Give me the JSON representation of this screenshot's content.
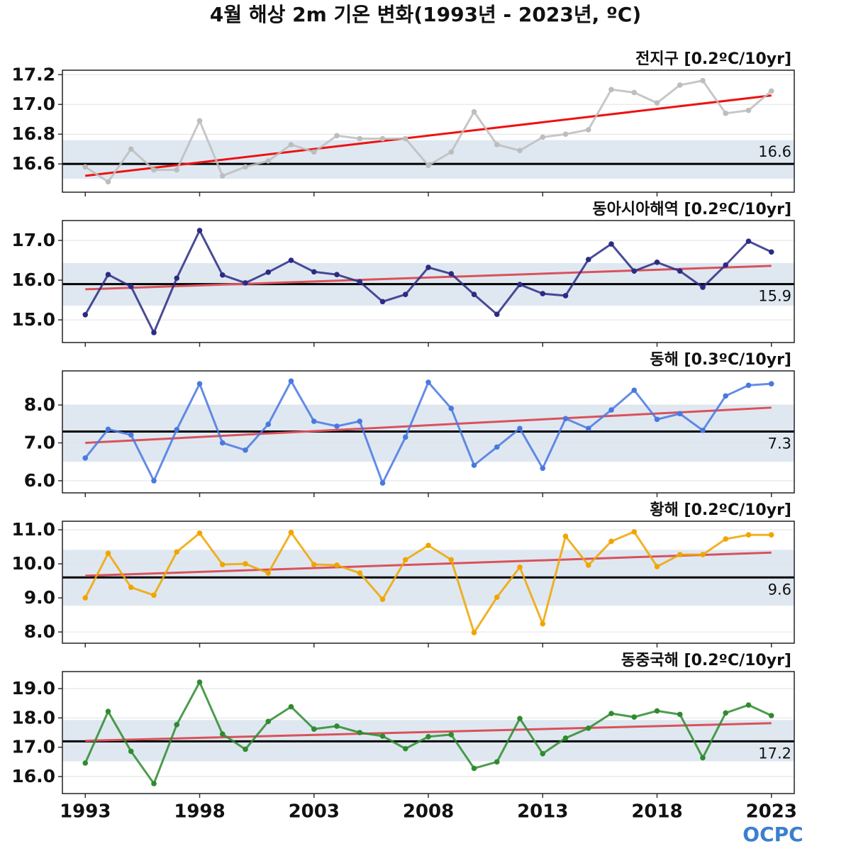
{
  "title": "4월 해상 2m 기온 변화(1993년 - 2023년, ºC)",
  "logo": "OCPC",
  "chart_data": [
    {
      "type": "line",
      "title": "전지구 [0.2ºC/10yr]",
      "x": [
        1993,
        1994,
        1995,
        1996,
        1997,
        1998,
        1999,
        2000,
        2001,
        2002,
        2003,
        2004,
        2005,
        2006,
        2007,
        2008,
        2009,
        2010,
        2011,
        2012,
        2013,
        2014,
        2015,
        2016,
        2017,
        2018,
        2019,
        2020,
        2021,
        2022,
        2023
      ],
      "series": [
        {
          "color": "#bdbdbd",
          "values": [
            16.58,
            16.48,
            16.7,
            16.56,
            16.56,
            16.89,
            16.52,
            16.58,
            16.62,
            16.73,
            16.68,
            16.79,
            16.77,
            16.77,
            16.77,
            16.59,
            16.68,
            16.95,
            16.73,
            16.69,
            16.78,
            16.8,
            16.83,
            17.1,
            17.08,
            17.01,
            17.13,
            17.16,
            16.94,
            16.96,
            17.09
          ]
        }
      ],
      "mean": 16.6,
      "band": [
        16.5,
        16.76
      ],
      "trend": [
        16.52,
        17.06
      ],
      "trend_color": "#ee1111",
      "band_color": "#dfe8f1",
      "xlim": [
        1992,
        2024
      ],
      "xticks": [
        1993,
        1998,
        2003,
        2008,
        2013,
        2018,
        2023
      ],
      "ylim": [
        16.41,
        17.23
      ],
      "yticks": [
        16.6,
        16.8,
        {
          "value": 17,
          "label": "17.0"
        },
        17.2
      ],
      "grid": true
    },
    {
      "type": "line",
      "title": "동아시아해역 [0.2ºC/10yr]",
      "x": [
        1993,
        1994,
        1995,
        1996,
        1997,
        1998,
        1999,
        2000,
        2001,
        2002,
        2003,
        2004,
        2005,
        2006,
        2007,
        2008,
        2009,
        2010,
        2011,
        2012,
        2013,
        2014,
        2015,
        2016,
        2017,
        2018,
        2019,
        2020,
        2021,
        2022,
        2023
      ],
      "series": [
        {
          "color": "#2b2b85",
          "values": [
            15.13,
            16.14,
            15.84,
            14.68,
            16.05,
            17.25,
            16.13,
            15.93,
            16.2,
            16.5,
            16.21,
            16.14,
            15.96,
            15.46,
            15.64,
            16.32,
            16.16,
            15.64,
            15.14,
            15.89,
            15.66,
            15.61,
            16.52,
            16.91,
            16.23,
            16.45,
            16.23,
            15.82,
            16.38,
            16.98,
            16.71
          ]
        }
      ],
      "mean": 15.9,
      "band": [
        15.36,
        16.43
      ],
      "trend": [
        15.77,
        16.36
      ],
      "trend_color": "#d9525c",
      "band_color": "#dfe8f1",
      "xlim": [
        1992,
        2024
      ],
      "xticks": [
        1993,
        1998,
        2003,
        2008,
        2013,
        2018,
        2023
      ],
      "ylim": [
        14.43,
        17.5
      ],
      "yticks": [
        {
          "value": 15,
          "label": "15.0"
        },
        {
          "value": 16,
          "label": "16.0"
        },
        {
          "value": 17,
          "label": "17.0"
        }
      ],
      "grid": true
    },
    {
      "type": "line",
      "title": "동해 [0.3ºC/10yr]",
      "x": [
        1993,
        1994,
        1995,
        1996,
        1997,
        1998,
        1999,
        2000,
        2001,
        2002,
        2003,
        2004,
        2005,
        2006,
        2007,
        2008,
        2009,
        2010,
        2011,
        2012,
        2013,
        2014,
        2015,
        2016,
        2017,
        2018,
        2019,
        2020,
        2021,
        2022,
        2023
      ],
      "series": [
        {
          "color": "#4a78e0",
          "values": [
            6.6,
            7.36,
            7.21,
            6.0,
            7.35,
            8.56,
            7.0,
            6.81,
            7.49,
            8.63,
            7.57,
            7.44,
            7.57,
            5.94,
            7.15,
            8.6,
            7.91,
            6.41,
            6.89,
            7.38,
            6.33,
            7.64,
            7.38,
            7.87,
            8.39,
            7.62,
            7.77,
            7.33,
            8.24,
            8.52,
            8.56
          ]
        }
      ],
      "mean": 7.3,
      "band": [
        6.5,
        8.0
      ],
      "trend": [
        7.0,
        7.93
      ],
      "trend_color": "#d9525c",
      "band_color": "#dfe8f1",
      "xlim": [
        1992,
        2024
      ],
      "xticks": [
        1993,
        1998,
        2003,
        2008,
        2013,
        2018,
        2023
      ],
      "ylim": [
        5.68,
        8.9
      ],
      "yticks": [
        {
          "value": 6,
          "label": "6.0"
        },
        {
          "value": 7,
          "label": "7.0"
        },
        {
          "value": 8,
          "label": "8.0"
        }
      ],
      "grid": true
    },
    {
      "type": "line",
      "title": "황해 [0.2ºC/10yr]",
      "x": [
        1993,
        1994,
        1995,
        1996,
        1997,
        1998,
        1999,
        2000,
        2001,
        2002,
        2003,
        2004,
        2005,
        2006,
        2007,
        2008,
        2009,
        2010,
        2011,
        2012,
        2013,
        2014,
        2015,
        2016,
        2017,
        2018,
        2019,
        2020,
        2021,
        2022,
        2023
      ],
      "series": [
        {
          "color": "#f0a500",
          "values": [
            9.0,
            10.31,
            9.31,
            9.08,
            10.35,
            10.9,
            9.98,
            10.0,
            9.73,
            10.92,
            9.98,
            9.96,
            9.73,
            8.96,
            10.12,
            10.54,
            10.12,
            7.98,
            9.02,
            9.9,
            8.24,
            10.81,
            9.96,
            10.66,
            10.94,
            9.92,
            10.27,
            10.27,
            10.73,
            10.85,
            10.85
          ]
        }
      ],
      "mean": 9.6,
      "band": [
        8.77,
        10.41
      ],
      "trend": [
        9.65,
        10.33
      ],
      "trend_color": "#d9525c",
      "band_color": "#dfe8f1",
      "xlim": [
        1992,
        2024
      ],
      "xticks": [
        1993,
        1998,
        2003,
        2008,
        2013,
        2018,
        2023
      ],
      "ylim": [
        7.67,
        11.25
      ],
      "yticks": [
        {
          "value": 8,
          "label": "8.0"
        },
        {
          "value": 9,
          "label": "9.0"
        },
        {
          "value": 10,
          "label": "10.0"
        },
        {
          "value": 11,
          "label": "11.0"
        }
      ],
      "grid": true
    },
    {
      "type": "line",
      "title": "동중국해 [0.2ºC/10yr]",
      "x": [
        1993,
        1994,
        1995,
        1996,
        1997,
        1998,
        1999,
        2000,
        2001,
        2002,
        2003,
        2004,
        2005,
        2006,
        2007,
        2008,
        2009,
        2010,
        2011,
        2012,
        2013,
        2014,
        2015,
        2016,
        2017,
        2018,
        2019,
        2020,
        2021,
        2022,
        2023
      ],
      "series": [
        {
          "color": "#2e8b2e",
          "values": [
            16.46,
            18.22,
            16.86,
            15.76,
            17.77,
            19.22,
            17.45,
            16.93,
            17.88,
            18.38,
            17.62,
            17.72,
            17.5,
            17.38,
            16.95,
            17.36,
            17.43,
            16.28,
            16.5,
            17.98,
            16.78,
            17.31,
            17.65,
            18.15,
            18.03,
            18.24,
            18.12,
            16.64,
            18.17,
            18.44,
            18.08
          ]
        }
      ],
      "mean": 17.2,
      "band": [
        16.52,
        17.93
      ],
      "trend": [
        17.22,
        17.82
      ],
      "trend_color": "#d9525c",
      "band_color": "#dfe8f1",
      "xlim": [
        1992,
        2024
      ],
      "xticks": [
        1993,
        1998,
        2003,
        2008,
        2013,
        2018,
        2023
      ],
      "ylim": [
        15.42,
        19.58
      ],
      "yticks": [
        {
          "value": 16,
          "label": "16.0"
        },
        {
          "value": 17,
          "label": "17.0"
        },
        {
          "value": 18,
          "label": "18.0"
        },
        {
          "value": 19,
          "label": "19.0"
        }
      ],
      "grid": true
    }
  ]
}
